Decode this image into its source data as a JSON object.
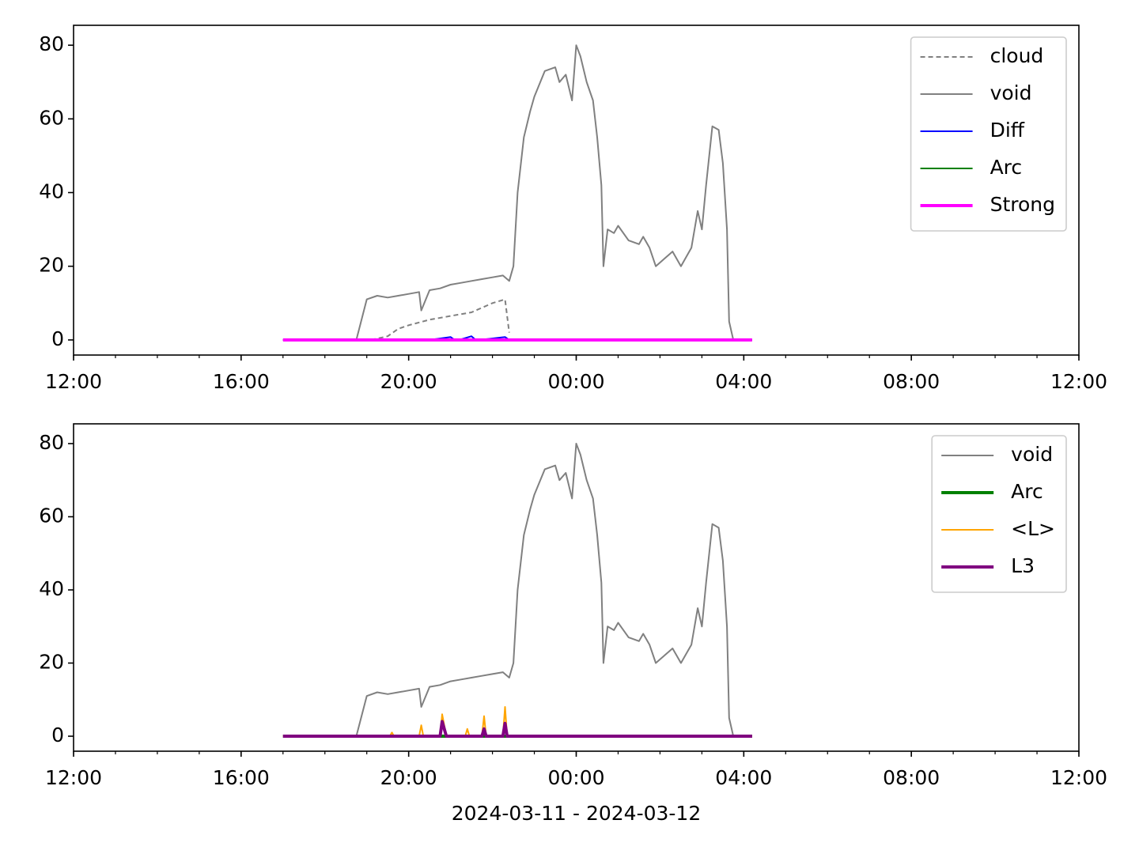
{
  "chart_data": [
    {
      "type": "line",
      "xlim": [
        12,
        36
      ],
      "ylim": [
        -4.1,
        85.4
      ],
      "xticks": [
        {
          "value": 12,
          "label": "12:00"
        },
        {
          "value": 16,
          "label": "16:00"
        },
        {
          "value": 20,
          "label": "20:00"
        },
        {
          "value": 24,
          "label": "00:00"
        },
        {
          "value": 28,
          "label": "04:00"
        },
        {
          "value": 32,
          "label": "08:00"
        },
        {
          "value": 36,
          "label": "12:00"
        }
      ],
      "yticks": [
        0,
        20,
        40,
        60,
        80
      ],
      "legend": "upper right",
      "series": [
        {
          "name": "cloud",
          "color": "#808080",
          "dash": true,
          "width": 2,
          "x": [
            19.1,
            19.5,
            19.75,
            20.0,
            20.5,
            21.0,
            21.5,
            22.0,
            22.3,
            22.4
          ],
          "values": [
            0,
            1,
            3,
            4,
            5.5,
            6.5,
            7.5,
            10,
            11,
            2
          ]
        },
        {
          "name": "void",
          "color": "#808080",
          "dash": false,
          "width": 2,
          "x": [
            18.75,
            19.0,
            19.25,
            19.5,
            19.75,
            20.0,
            20.25,
            20.3,
            20.5,
            20.75,
            21.0,
            21.25,
            21.5,
            21.75,
            22.0,
            22.25,
            22.4,
            22.5,
            22.6,
            22.75,
            22.9,
            23.0,
            23.25,
            23.5,
            23.6,
            23.75,
            23.9,
            24.0,
            24.1,
            24.25,
            24.4,
            24.5,
            24.6,
            24.65,
            24.75,
            24.9,
            25.0,
            25.25,
            25.5,
            25.6,
            25.75,
            25.9,
            26.1,
            26.3,
            26.5,
            26.75,
            26.9,
            27.0,
            27.1,
            27.25,
            27.4,
            27.5,
            27.6,
            27.65,
            27.75
          ],
          "values": [
            0,
            11,
            12,
            11.5,
            12,
            12.5,
            13,
            8,
            13.5,
            14,
            15,
            15.5,
            16,
            16.5,
            17,
            17.5,
            16,
            20,
            40,
            55,
            62,
            66,
            73,
            74,
            70,
            72,
            65,
            80,
            77,
            70,
            65,
            55,
            42,
            20,
            30,
            29,
            31,
            27,
            26,
            28,
            25,
            20,
            22,
            24,
            20,
            25,
            35,
            30,
            42,
            58,
            57,
            48,
            30,
            5,
            0
          ]
        },
        {
          "name": "Diff",
          "color": "#0000ff",
          "dash": false,
          "width": 2,
          "x": [
            17,
            20.5,
            21.0,
            21.1,
            21.2,
            21.5,
            21.6,
            21.7,
            22.3,
            22.4,
            28.2
          ],
          "values": [
            0,
            0,
            0.8,
            0,
            0,
            1,
            0,
            0,
            0.8,
            0,
            0
          ]
        },
        {
          "name": "Arc",
          "color": "#008000",
          "dash": false,
          "width": 2,
          "x": [
            17,
            28.2
          ],
          "values": [
            0,
            0
          ]
        },
        {
          "name": "Strong",
          "color": "#ff00ff",
          "dash": false,
          "width": 4,
          "x": [
            17,
            28.2
          ],
          "values": [
            0,
            0
          ]
        }
      ]
    },
    {
      "type": "line",
      "xlabel": "2024-03-11 - 2024-03-12",
      "xlim": [
        12,
        36
      ],
      "ylim": [
        -4.1,
        85.4
      ],
      "xticks": [
        {
          "value": 12,
          "label": "12:00"
        },
        {
          "value": 16,
          "label": "16:00"
        },
        {
          "value": 20,
          "label": "20:00"
        },
        {
          "value": 24,
          "label": "00:00"
        },
        {
          "value": 28,
          "label": "04:00"
        },
        {
          "value": 32,
          "label": "08:00"
        },
        {
          "value": 36,
          "label": "12:00"
        }
      ],
      "yticks": [
        0,
        20,
        40,
        60,
        80
      ],
      "legend": "upper right",
      "series": [
        {
          "name": "void",
          "color": "#808080",
          "dash": false,
          "width": 2,
          "x": [
            18.75,
            19.0,
            19.25,
            19.5,
            19.75,
            20.0,
            20.25,
            20.3,
            20.5,
            20.75,
            21.0,
            21.25,
            21.5,
            21.75,
            22.0,
            22.25,
            22.4,
            22.5,
            22.6,
            22.75,
            22.9,
            23.0,
            23.25,
            23.5,
            23.6,
            23.75,
            23.9,
            24.0,
            24.1,
            24.25,
            24.4,
            24.5,
            24.6,
            24.65,
            24.75,
            24.9,
            25.0,
            25.25,
            25.5,
            25.6,
            25.75,
            25.9,
            26.1,
            26.3,
            26.5,
            26.75,
            26.9,
            27.0,
            27.1,
            27.25,
            27.4,
            27.5,
            27.6,
            27.65,
            27.75
          ],
          "values": [
            0,
            11,
            12,
            11.5,
            12,
            12.5,
            13,
            8,
            13.5,
            14,
            15,
            15.5,
            16,
            16.5,
            17,
            17.5,
            16,
            20,
            40,
            55,
            62,
            66,
            73,
            74,
            70,
            72,
            65,
            80,
            77,
            70,
            65,
            55,
            42,
            20,
            30,
            29,
            31,
            27,
            26,
            28,
            25,
            20,
            22,
            24,
            20,
            25,
            35,
            30,
            42,
            58,
            57,
            48,
            30,
            5,
            0
          ]
        },
        {
          "name": "Arc",
          "color": "#008000",
          "dash": false,
          "width": 4,
          "x": [
            17,
            28.2
          ],
          "values": [
            0,
            0
          ]
        },
        {
          "name": "<L>",
          "color": "#ffa500",
          "dash": false,
          "width": 2,
          "x": [
            17,
            19.55,
            19.6,
            19.65,
            20.25,
            20.3,
            20.35,
            20.75,
            20.8,
            20.9,
            21.35,
            21.4,
            21.45,
            21.75,
            21.8,
            21.85,
            22.25,
            22.3,
            22.35,
            28.2
          ],
          "values": [
            0,
            0,
            1,
            0,
            0,
            3,
            0,
            0,
            6,
            0,
            0,
            2,
            0,
            0,
            5.5,
            0,
            0,
            8,
            0,
            0
          ]
        },
        {
          "name": "L3",
          "color": "#800080",
          "dash": false,
          "width": 4,
          "x": [
            17,
            20.75,
            20.8,
            20.9,
            21.75,
            21.8,
            21.85,
            22.25,
            22.3,
            22.35,
            28.2
          ],
          "values": [
            0,
            0,
            4,
            0,
            0,
            2,
            0,
            0,
            3.5,
            0,
            0
          ]
        }
      ]
    }
  ]
}
